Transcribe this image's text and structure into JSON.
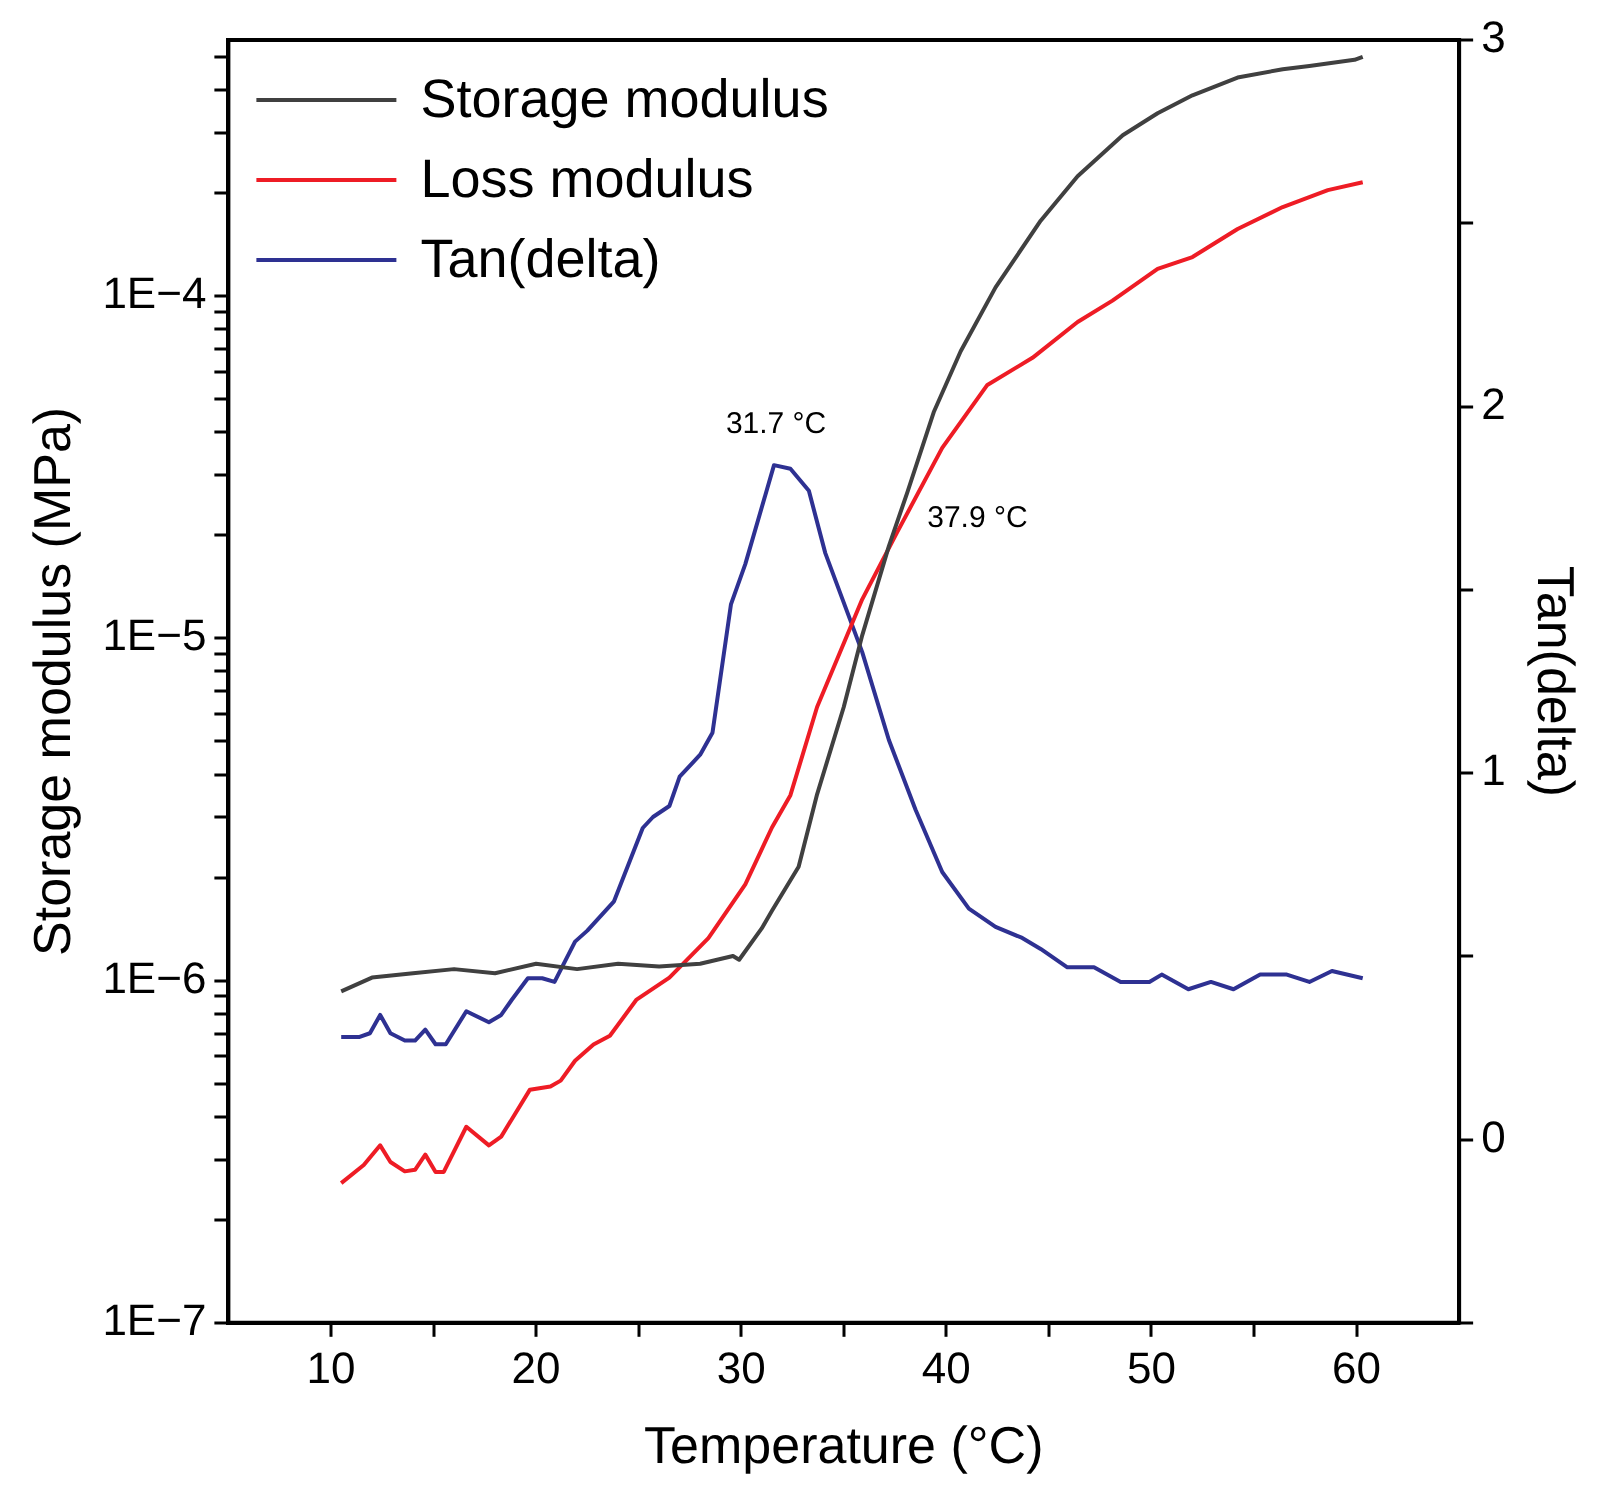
{
  "chart_data": {
    "type": "line",
    "xlabel": "Temperature (°C)",
    "ylabel": "Storage modulus (MPa)",
    "y2label": "Tan(delta)",
    "log": "y",
    "grid": false,
    "legend": "top left",
    "marker": "none",
    "line_style": "solid",
    "xlim": [
      5,
      65
    ],
    "xticks": [
      10,
      {
        "value": 15,
        "label": null
      },
      20,
      {
        "value": 25,
        "label": null
      },
      30,
      {
        "value": 35,
        "label": null
      },
      40,
      {
        "value": 45,
        "label": null
      },
      50,
      {
        "value": 55,
        "label": null
      },
      60
    ],
    "ylim": [
      1e-07,
      0.00056
    ],
    "yticks": [
      {
        "value": 1e-07,
        "label": "1E−7"
      },
      {
        "value": 2e-07,
        "label": null
      },
      {
        "value": 3e-07,
        "label": null
      },
      {
        "value": 4e-07,
        "label": null
      },
      {
        "value": 5e-07,
        "label": null
      },
      {
        "value": 6e-07,
        "label": null
      },
      {
        "value": 7e-07,
        "label": null
      },
      {
        "value": 8e-07,
        "label": null
      },
      {
        "value": 9e-07,
        "label": null
      },
      {
        "value": 1e-06,
        "label": "1E−6"
      },
      {
        "value": 2e-06,
        "label": null
      },
      {
        "value": 3e-06,
        "label": null
      },
      {
        "value": 4e-06,
        "label": null
      },
      {
        "value": 5e-06,
        "label": null
      },
      {
        "value": 6e-06,
        "label": null
      },
      {
        "value": 7e-06,
        "label": null
      },
      {
        "value": 8e-06,
        "label": null
      },
      {
        "value": 9e-06,
        "label": null
      },
      {
        "value": 1e-05,
        "label": "1E−5"
      },
      {
        "value": 2e-05,
        "label": null
      },
      {
        "value": 3e-05,
        "label": null
      },
      {
        "value": 4e-05,
        "label": null
      },
      {
        "value": 5e-05,
        "label": null
      },
      {
        "value": 6e-05,
        "label": null
      },
      {
        "value": 7e-05,
        "label": null
      },
      {
        "value": 8e-05,
        "label": null
      },
      {
        "value": 9e-05,
        "label": null
      },
      {
        "value": 0.0001,
        "label": "1E−4"
      },
      {
        "value": 0.0002,
        "label": null
      },
      {
        "value": 0.0003,
        "label": null
      },
      {
        "value": 0.0004,
        "label": null
      },
      {
        "value": 0.0005,
        "label": null
      }
    ],
    "y2lim": [
      -0.5,
      3
    ],
    "y2ticks": [
      {
        "value": -0.5,
        "label": null
      },
      0,
      {
        "value": 0.5,
        "label": null
      },
      1,
      {
        "value": 1.5,
        "label": null
      },
      2,
      {
        "value": 2.5,
        "label": null
      },
      3
    ],
    "annotations": [
      {
        "text": "31.7 °C",
        "x": 31.7,
        "y": 3.2e-05
      },
      {
        "text": "37.9 °C",
        "x": 37.9,
        "y": 2.3e-05
      }
    ],
    "series": [
      {
        "name": "Storage modulus",
        "color": "#404040",
        "x": [
          10.5,
          12,
          14,
          16,
          18,
          20,
          22,
          24,
          26,
          28,
          29.6,
          29.9,
          31.0,
          31.5,
          32.8,
          33.7,
          35,
          35.9,
          37.2,
          38.1,
          39.4,
          40.7,
          42.4,
          44.6,
          46.4,
          48.6,
          50.3,
          52.0,
          54.2,
          56.4,
          57.7,
          59.9,
          60.3
        ],
        "values": [
          9.3e-07,
          1.02e-06,
          1.05e-06,
          1.08e-06,
          1.05e-06,
          1.12e-06,
          1.08e-06,
          1.12e-06,
          1.1e-06,
          1.12e-06,
          1.18e-06,
          1.15e-06,
          1.42e-06,
          1.6e-06,
          2.15e-06,
          3.5e-06,
          6.3e-06,
          1.02e-05,
          1.86e-05,
          2.67e-05,
          4.6e-05,
          6.9e-05,
          0.000106,
          0.000166,
          0.000224,
          0.000295,
          0.000342,
          0.000386,
          0.000435,
          0.00046,
          0.00047,
          0.00049,
          0.0005
        ]
      },
      {
        "name": "Loss modulus",
        "color": "#ee1c25",
        "x": [
          10.5,
          11.6,
          12.4,
          12.9,
          13.6,
          14.1,
          14.6,
          15.1,
          15.5,
          16.6,
          17.7,
          18.3,
          19.7,
          20.7,
          21.2,
          21.9,
          22.8,
          23.6,
          24.9,
          26.5,
          28.4,
          30.2,
          31.5,
          32.4,
          33.7,
          35.9,
          37.6,
          39.8,
          42.0,
          44.2,
          46.4,
          48.1,
          50.3,
          52.0,
          54.2,
          56.4,
          58.6,
          60.3
        ],
        "values": [
          2.56e-07,
          2.89e-07,
          3.3e-07,
          2.95e-07,
          2.77e-07,
          2.8e-07,
          3.1e-07,
          2.76e-07,
          2.76e-07,
          3.74e-07,
          3.3e-07,
          3.5e-07,
          4.8e-07,
          4.9e-07,
          5.1e-07,
          5.83e-07,
          6.5e-07,
          6.9e-07,
          8.8e-07,
          1.02e-06,
          1.33e-06,
          1.91e-06,
          2.8e-06,
          3.48e-06,
          6.3e-06,
          1.3e-05,
          2.04e-05,
          3.6e-05,
          5.5e-05,
          6.6e-05,
          8.4e-05,
          9.7e-05,
          0.00012,
          0.00013,
          0.000157,
          0.000182,
          0.000204,
          0.000215
        ]
      },
      {
        "name": "Tan(delta)",
        "color": "#2e3192",
        "axis": "y2",
        "x": [
          10.5,
          11.4,
          11.9,
          12.4,
          12.9,
          13.6,
          14.1,
          14.6,
          15.1,
          15.6,
          16.6,
          17.7,
          18.3,
          18.8,
          19.6,
          20.3,
          20.9,
          21.9,
          22.5,
          23.8,
          25.2,
          25.7,
          26.5,
          27.0,
          28.0,
          28.6,
          29.5,
          30.2,
          31.6,
          32.4,
          33.3,
          34.1,
          35.9,
          37.2,
          38.5,
          39.8,
          41.1,
          42.4,
          43.7,
          44.6,
          45.9,
          47.2,
          48.5,
          49.9,
          50.5,
          51.8,
          52.9,
          54.0,
          55.3,
          56.6,
          57.7,
          58.8,
          60.3
        ],
        "values": [
          0.28,
          0.28,
          0.29,
          0.34,
          0.29,
          0.27,
          0.27,
          0.3,
          0.26,
          0.26,
          0.35,
          0.32,
          0.34,
          0.38,
          0.44,
          0.44,
          0.43,
          0.54,
          0.57,
          0.65,
          0.85,
          0.88,
          0.91,
          0.99,
          1.05,
          1.11,
          1.46,
          1.57,
          1.84,
          1.83,
          1.77,
          1.6,
          1.33,
          1.09,
          0.9,
          0.73,
          0.63,
          0.58,
          0.55,
          0.52,
          0.47,
          0.47,
          0.43,
          0.43,
          0.45,
          0.41,
          0.43,
          0.41,
          0.45,
          0.45,
          0.43,
          0.46,
          0.44
        ]
      }
    ]
  }
}
